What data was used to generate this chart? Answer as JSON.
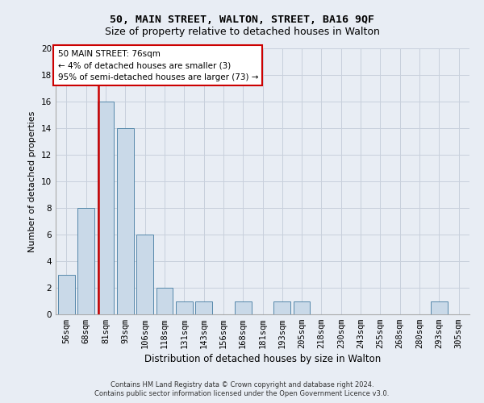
{
  "title_line1": "50, MAIN STREET, WALTON, STREET, BA16 9QF",
  "title_line2": "Size of property relative to detached houses in Walton",
  "xlabel": "Distribution of detached houses by size in Walton",
  "ylabel": "Number of detached properties",
  "bar_labels": [
    "56sqm",
    "68sqm",
    "81sqm",
    "93sqm",
    "106sqm",
    "118sqm",
    "131sqm",
    "143sqm",
    "156sqm",
    "168sqm",
    "181sqm",
    "193sqm",
    "205sqm",
    "218sqm",
    "230sqm",
    "243sqm",
    "255sqm",
    "268sqm",
    "280sqm",
    "293sqm",
    "305sqm"
  ],
  "bar_values": [
    3,
    8,
    16,
    14,
    6,
    2,
    1,
    1,
    0,
    1,
    0,
    1,
    1,
    0,
    0,
    0,
    0,
    0,
    0,
    1,
    0
  ],
  "bar_color": "#c9d9e8",
  "bar_edge_color": "#5588aa",
  "annotation_line1": "50 MAIN STREET: 76sqm",
  "annotation_line2": "← 4% of detached houses are smaller (3)",
  "annotation_line3": "95% of semi-detached houses are larger (73) →",
  "annotation_box_facecolor": "#ffffff",
  "annotation_box_edgecolor": "#cc0000",
  "vline_color": "#cc0000",
  "ylim": [
    0,
    20
  ],
  "yticks": [
    0,
    2,
    4,
    6,
    8,
    10,
    12,
    14,
    16,
    18,
    20
  ],
  "grid_color": "#c8d0dc",
  "footer_line1": "Contains HM Land Registry data © Crown copyright and database right 2024.",
  "footer_line2": "Contains public sector information licensed under the Open Government Licence v3.0.",
  "bg_color": "#e8edf4",
  "title1_fontsize": 9.5,
  "title2_fontsize": 9.0,
  "ylabel_fontsize": 8.0,
  "xlabel_fontsize": 8.5,
  "tick_fontsize": 7.5,
  "annot_fontsize": 7.5,
  "footer_fontsize": 6.0
}
